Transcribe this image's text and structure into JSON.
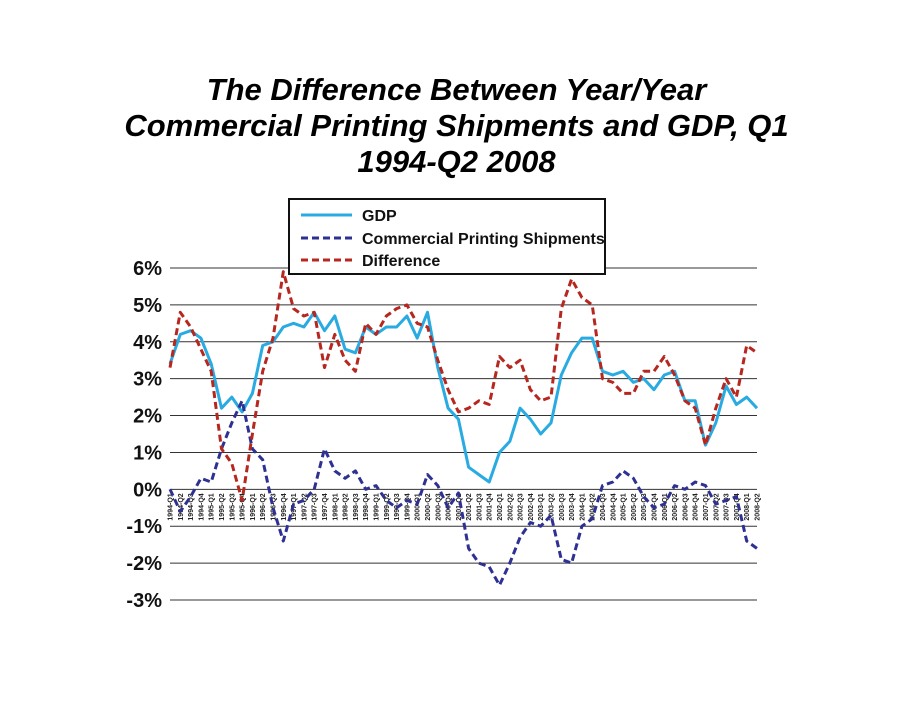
{
  "chart_data": {
    "type": "line",
    "title_lines": [
      "The Difference Between Year/Year",
      "Commercial Printing Shipments and GDP, Q1",
      "1994-Q2 2008"
    ],
    "xlabel": "",
    "ylabel": "",
    "ylim": [
      -3,
      6
    ],
    "yticks": [
      6,
      5,
      4,
      3,
      2,
      1,
      0,
      -1,
      -2,
      -3
    ],
    "ytick_labels": [
      "6%",
      "5%",
      "4%",
      "3%",
      "2%",
      "1%",
      "0%",
      "-1%",
      "-2%",
      "-3%"
    ],
    "grid": true,
    "legend_position": "top-center",
    "categories": [
      "1994-Q1",
      "1994-Q2",
      "1994-Q3",
      "1994-Q4",
      "1995-Q1",
      "1995-Q2",
      "1995-Q3",
      "1995-Q4",
      "1996-Q1",
      "1996-Q2",
      "1996-Q3",
      "1996-Q4",
      "1997-Q1",
      "1997-Q2",
      "1997-Q3",
      "1997-Q4",
      "1998-Q1",
      "1998-Q2",
      "1998-Q3",
      "1998-Q4",
      "1999-Q1",
      "1999-Q2",
      "1999-Q3",
      "1999-Q4",
      "2000-Q1",
      "2000-Q2",
      "2000-Q3",
      "2000-Q4",
      "2001-Q1",
      "2001-Q2",
      "2001-Q3",
      "2001-Q4",
      "2002-Q1",
      "2002-Q2",
      "2002-Q3",
      "2002-Q4",
      "2003-Q1",
      "2003-Q2",
      "2003-Q3",
      "2003-Q4",
      "2004-Q1",
      "2004-Q2",
      "2004-Q3",
      "2004-Q4",
      "2005-Q1",
      "2005-Q2",
      "2005-Q3",
      "2005-Q4",
      "2006-Q1",
      "2006-Q2",
      "2006-Q3",
      "2006-Q4",
      "2007-Q1",
      "2007-Q2",
      "2007-Q3",
      "2007-Q4",
      "2008-Q1",
      "2008-Q2"
    ],
    "series": [
      {
        "name": "GDP",
        "color": "#29abe2",
        "dash": "solid",
        "values": [
          3.4,
          4.2,
          4.3,
          4.1,
          3.4,
          2.2,
          2.5,
          2.1,
          2.6,
          3.9,
          4.0,
          4.4,
          4.5,
          4.4,
          4.8,
          4.3,
          4.7,
          3.8,
          3.7,
          4.4,
          4.2,
          4.4,
          4.4,
          4.7,
          4.1,
          4.8,
          3.3,
          2.2,
          1.9,
          0.6,
          0.4,
          0.2,
          1.0,
          1.3,
          2.2,
          1.9,
          1.5,
          1.8,
          3.1,
          3.7,
          4.1,
          4.1,
          3.2,
          3.1,
          3.2,
          2.9,
          3.0,
          2.7,
          3.1,
          3.2,
          2.4,
          2.4,
          1.2,
          1.8,
          2.8,
          2.3,
          2.5,
          2.2
        ]
      },
      {
        "name": "Commercial Printing Shipments",
        "color": "#2e3192",
        "dash": "dashed",
        "values": [
          0.0,
          -0.6,
          -0.2,
          0.3,
          0.2,
          1.1,
          1.8,
          2.4,
          1.1,
          0.8,
          -0.5,
          -1.4,
          -0.4,
          -0.3,
          0.0,
          1.1,
          0.5,
          0.3,
          0.5,
          0.0,
          0.1,
          -0.3,
          -0.5,
          -0.3,
          -0.4,
          0.4,
          0.1,
          -0.5,
          -0.1,
          -1.6,
          -2.0,
          -2.1,
          -2.6,
          -2.0,
          -1.3,
          -0.9,
          -1.0,
          -0.7,
          -1.9,
          -2.0,
          -1.0,
          -0.8,
          0.1,
          0.2,
          0.5,
          0.3,
          -0.2,
          -0.5,
          -0.4,
          0.1,
          0.0,
          0.2,
          0.1,
          -0.4,
          -0.3,
          -0.2,
          -1.4,
          -1.6
        ]
      },
      {
        "name": "Difference",
        "color": "#b5271f",
        "dash": "dashed",
        "values": [
          3.3,
          4.8,
          4.4,
          3.8,
          3.2,
          1.1,
          0.7,
          -0.3,
          1.5,
          3.2,
          4.1,
          5.9,
          4.9,
          4.7,
          4.8,
          3.3,
          4.2,
          3.5,
          3.2,
          4.5,
          4.2,
          4.7,
          4.9,
          5.0,
          4.5,
          4.4,
          3.5,
          2.7,
          2.1,
          2.2,
          2.4,
          2.3,
          3.6,
          3.3,
          3.5,
          2.7,
          2.4,
          2.5,
          4.9,
          5.7,
          5.2,
          5.0,
          3.0,
          2.9,
          2.6,
          2.6,
          3.2,
          3.2,
          3.6,
          3.1,
          2.4,
          2.2,
          1.2,
          2.2,
          3.0,
          2.5,
          3.9,
          3.7
        ]
      }
    ],
    "legend": {
      "entries": [
        "GDP",
        "Commercial Printing Shipments",
        "Difference"
      ]
    }
  }
}
